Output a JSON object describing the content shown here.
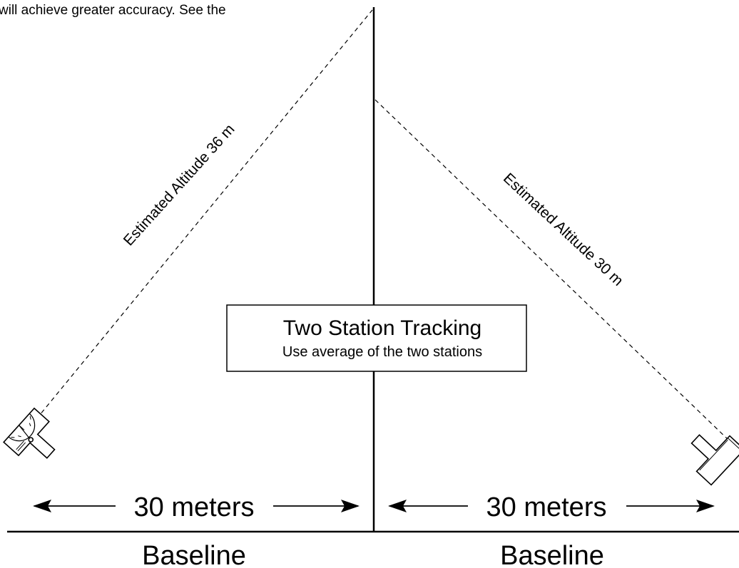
{
  "caption": {
    "text": "will achieve greater accuracy.  See the"
  },
  "left_sightline": {
    "label": "Estimated Altitude 36 m"
  },
  "right_sightline": {
    "label": "Estimated Altitude 30 m"
  },
  "info_box": {
    "title": "Two Station Tracking",
    "subtitle": "Use average of the two stations"
  },
  "left_distance": {
    "label": "30 meters"
  },
  "right_distance": {
    "label": "30 meters"
  },
  "left_baseline": {
    "label": "Baseline"
  },
  "right_baseline": {
    "label": "Baseline"
  },
  "colors": {
    "ink": "#000000",
    "background": "#ffffff"
  },
  "icons": {
    "left_station": "altitude-tracker-icon",
    "right_station": "altitude-tracker-icon"
  }
}
